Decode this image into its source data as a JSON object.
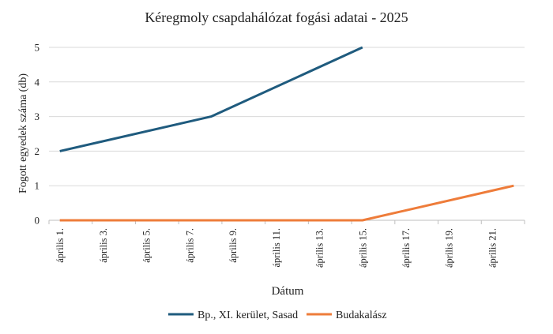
{
  "chart_data": {
    "type": "line",
    "title": "Kéregmoly csapdahálózat fogási adatai - 2025",
    "xlabel": "Dátum",
    "ylabel": "Fogott egyedek száma (db)",
    "ylim": [
      0,
      5
    ],
    "yticks": [
      "0",
      "1",
      "2",
      "3",
      "4",
      "5"
    ],
    "categories": [
      "április 1.",
      "április 3.",
      "április 5.",
      "április 7.",
      "április 9.",
      "április 11.",
      "április 13.",
      "április 15.",
      "április 17.",
      "április 19.",
      "április 21."
    ],
    "x_domain": [
      "2025-04-01",
      "2025-04-22"
    ],
    "grid": true,
    "legend_position": "bottom",
    "series": [
      {
        "name": "Bp., XI. kerület, Sasad",
        "color": "#1f5b7e",
        "points": [
          {
            "x": "2025-04-01",
            "y": 2
          },
          {
            "x": "2025-04-08",
            "y": 3
          },
          {
            "x": "2025-04-15",
            "y": 5
          }
        ]
      },
      {
        "name": "Budakalász",
        "color": "#ee7c3a",
        "points": [
          {
            "x": "2025-04-01",
            "y": 0
          },
          {
            "x": "2025-04-15",
            "y": 0
          },
          {
            "x": "2025-04-22",
            "y": 1
          }
        ]
      }
    ]
  }
}
